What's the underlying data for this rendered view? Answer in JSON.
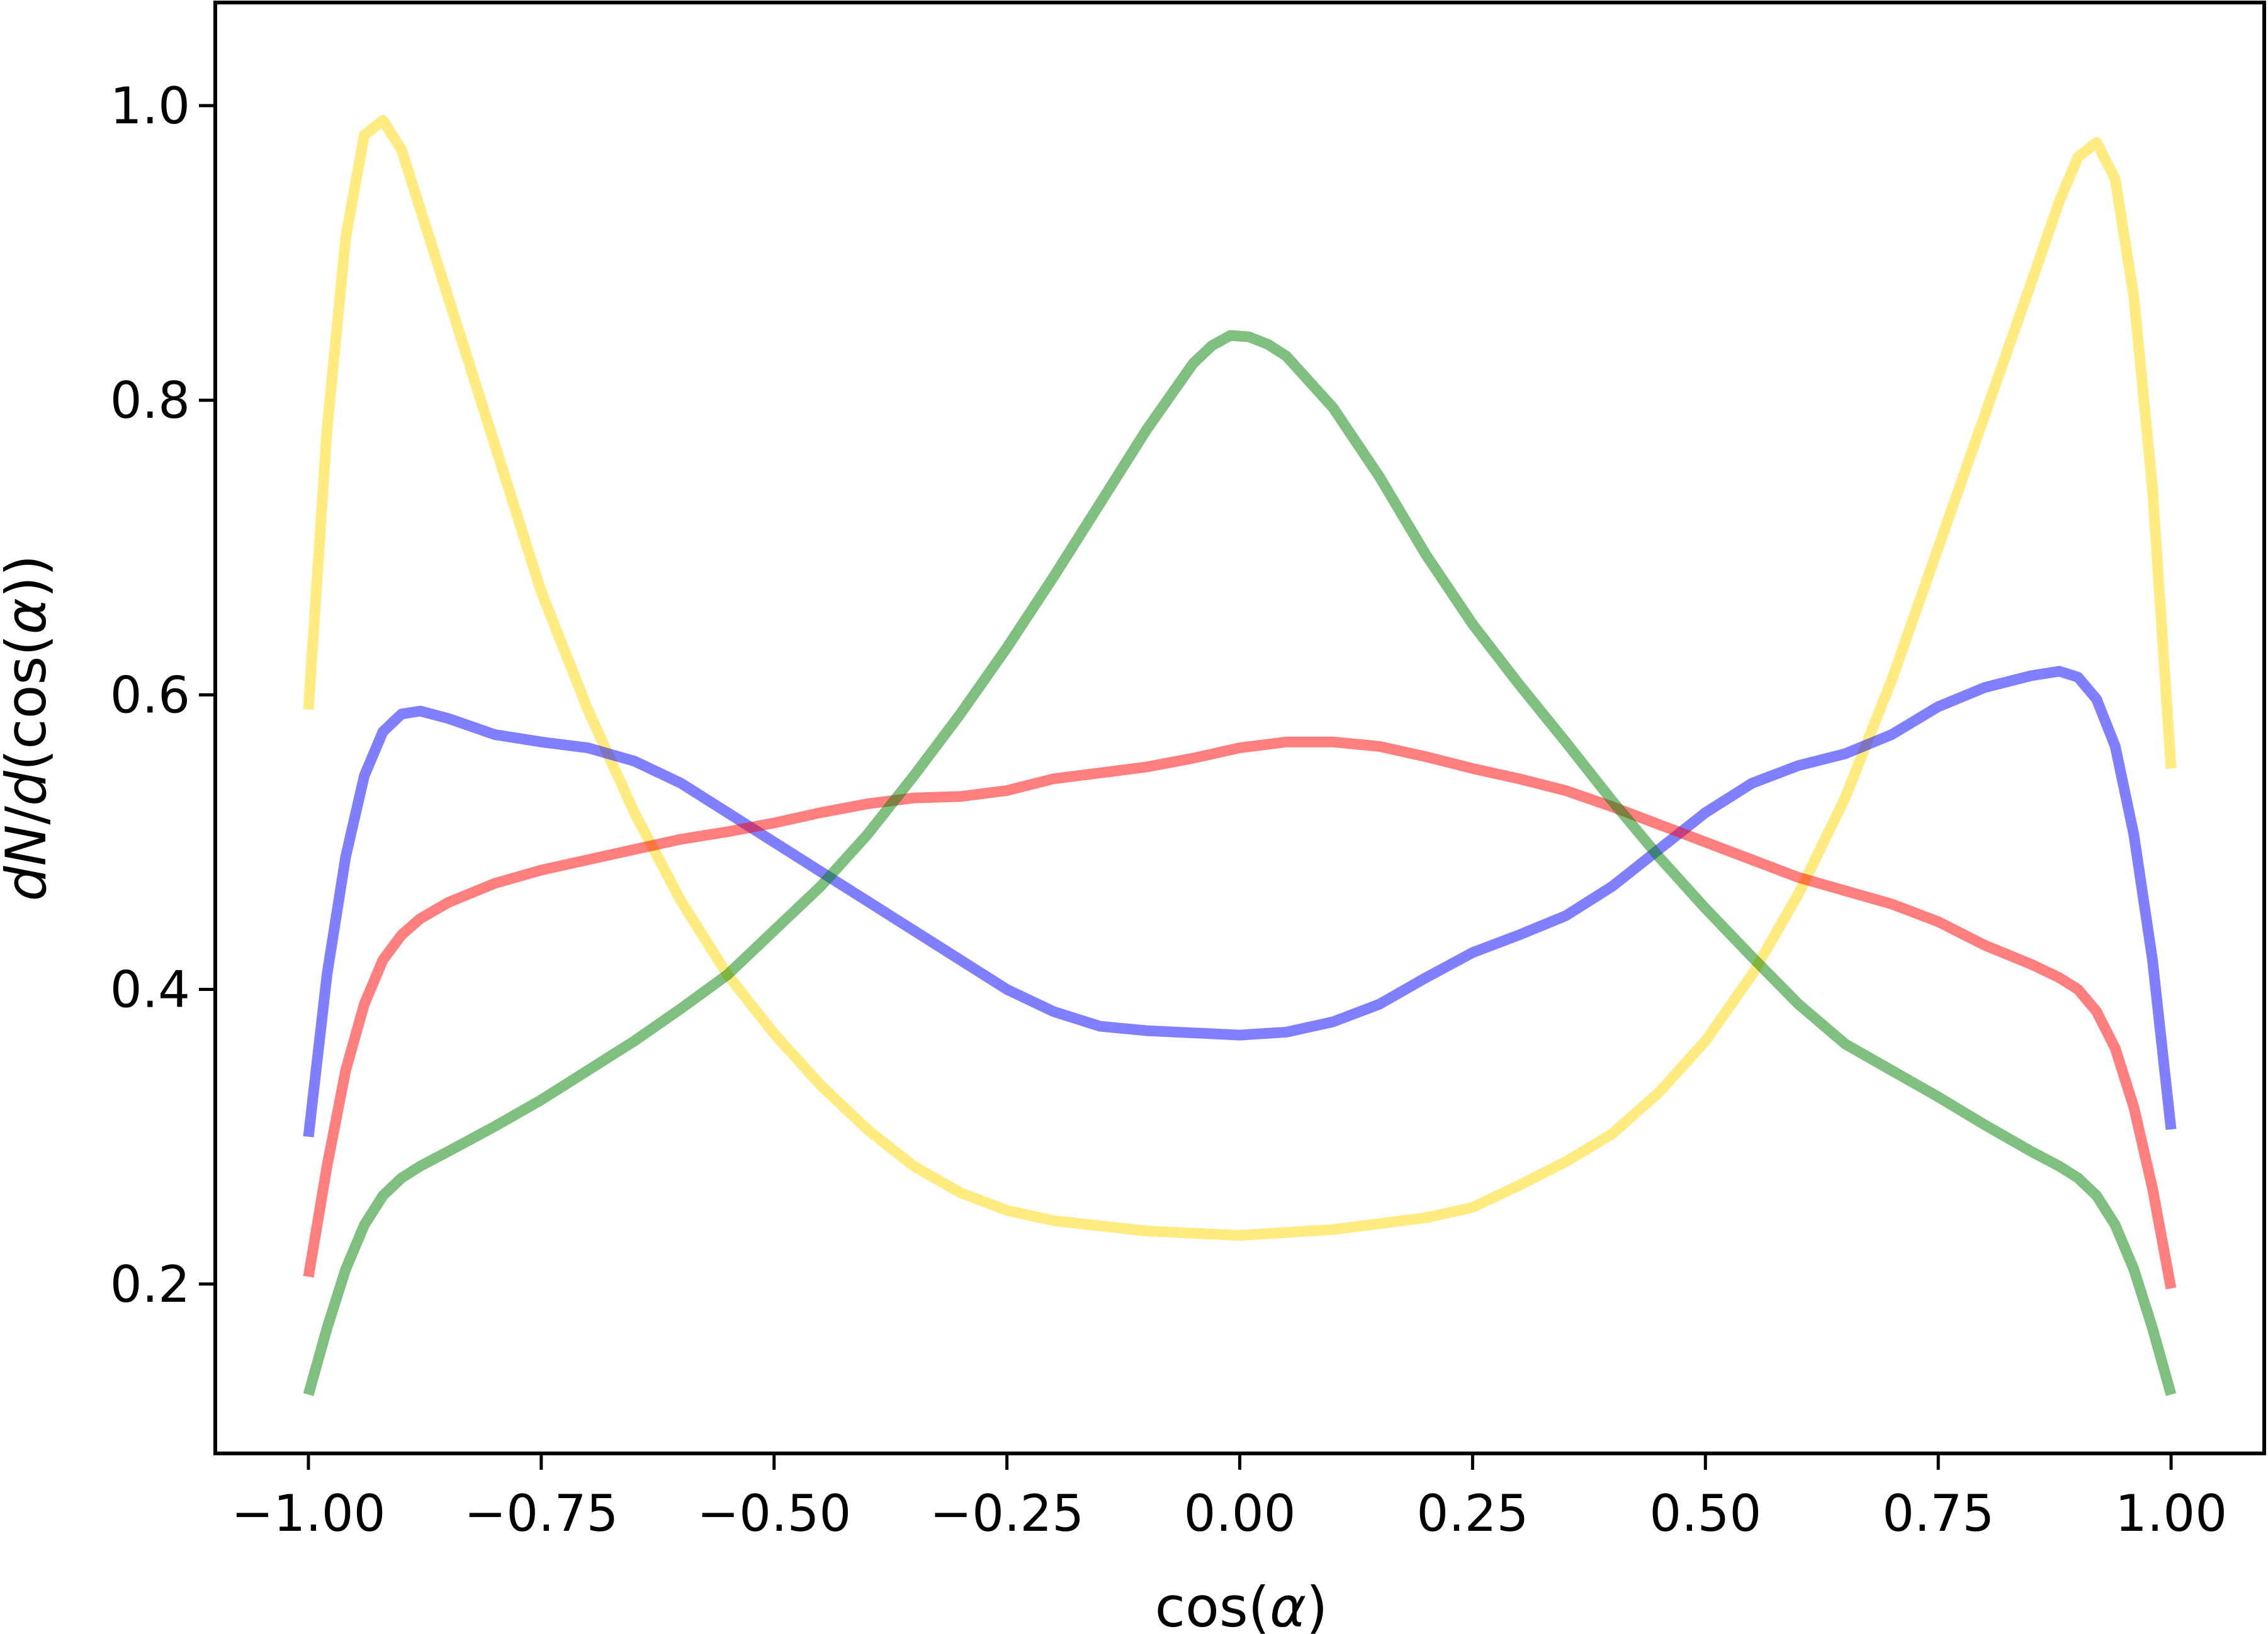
{
  "chart_data": {
    "type": "line",
    "xlabel": "cos(α)",
    "ylabel_parts": {
      "a": "dN",
      "b": "/",
      "c": "d",
      "d": "(cos(",
      "e": "α",
      "f": "))"
    },
    "xlabel_parts": {
      "a": "cos(",
      "b": "α",
      "c": ")"
    },
    "xlim": [
      -1.1,
      1.1
    ],
    "ylim": [
      0.085,
      1.07
    ],
    "xticks": [
      {
        "value": -1.0,
        "label": "−1.00"
      },
      {
        "value": -0.75,
        "label": "−0.75"
      },
      {
        "value": -0.5,
        "label": "−0.50"
      },
      {
        "value": -0.25,
        "label": "−0.25"
      },
      {
        "value": 0.0,
        "label": "0.00"
      },
      {
        "value": 0.25,
        "label": "0.25"
      },
      {
        "value": 0.5,
        "label": "0.50"
      },
      {
        "value": 0.75,
        "label": "0.75"
      },
      {
        "value": 1.0,
        "label": "1.00"
      }
    ],
    "yticks": [
      {
        "value": 0.2,
        "label": "0.2"
      },
      {
        "value": 0.4,
        "label": "0.4"
      },
      {
        "value": 0.6,
        "label": "0.6"
      },
      {
        "value": 0.8,
        "label": "0.8"
      },
      {
        "value": 1.0,
        "label": "1.0"
      }
    ],
    "grid": false,
    "legend": "none",
    "series": [
      {
        "color": "#ffd700",
        "points": [
          [
            -1.0,
            0.59
          ],
          [
            -0.98,
            0.78
          ],
          [
            -0.96,
            0.91
          ],
          [
            -0.94,
            0.98
          ],
          [
            -0.92,
            0.99
          ],
          [
            -0.9,
            0.97
          ],
          [
            -0.88,
            0.93
          ],
          [
            -0.85,
            0.87
          ],
          [
            -0.8,
            0.77
          ],
          [
            -0.75,
            0.67
          ],
          [
            -0.7,
            0.59
          ],
          [
            -0.65,
            0.52
          ],
          [
            -0.6,
            0.46
          ],
          [
            -0.55,
            0.41
          ],
          [
            -0.5,
            0.37
          ],
          [
            -0.45,
            0.335
          ],
          [
            -0.4,
            0.305
          ],
          [
            -0.35,
            0.28
          ],
          [
            -0.3,
            0.262
          ],
          [
            -0.25,
            0.25
          ],
          [
            -0.2,
            0.243
          ],
          [
            -0.1,
            0.236
          ],
          [
            0.0,
            0.233
          ],
          [
            0.1,
            0.237
          ],
          [
            0.2,
            0.245
          ],
          [
            0.25,
            0.252
          ],
          [
            0.3,
            0.267
          ],
          [
            0.35,
            0.283
          ],
          [
            0.4,
            0.302
          ],
          [
            0.45,
            0.33
          ],
          [
            0.5,
            0.365
          ],
          [
            0.55,
            0.41
          ],
          [
            0.6,
            0.465
          ],
          [
            0.65,
            0.53
          ],
          [
            0.7,
            0.61
          ],
          [
            0.75,
            0.7
          ],
          [
            0.8,
            0.79
          ],
          [
            0.85,
            0.88
          ],
          [
            0.88,
            0.935
          ],
          [
            0.9,
            0.965
          ],
          [
            0.92,
            0.975
          ],
          [
            0.94,
            0.95
          ],
          [
            0.96,
            0.87
          ],
          [
            0.98,
            0.74
          ],
          [
            1.0,
            0.55
          ]
        ]
      },
      {
        "color": "#0000ff",
        "points": [
          [
            -1.0,
            0.3
          ],
          [
            -0.98,
            0.41
          ],
          [
            -0.96,
            0.49
          ],
          [
            -0.94,
            0.545
          ],
          [
            -0.92,
            0.575
          ],
          [
            -0.9,
            0.587
          ],
          [
            -0.88,
            0.589
          ],
          [
            -0.85,
            0.584
          ],
          [
            -0.8,
            0.573
          ],
          [
            -0.75,
            0.568
          ],
          [
            -0.7,
            0.564
          ],
          [
            -0.65,
            0.555
          ],
          [
            -0.6,
            0.54
          ],
          [
            -0.55,
            0.52
          ],
          [
            -0.5,
            0.5
          ],
          [
            -0.45,
            0.48
          ],
          [
            -0.4,
            0.46
          ],
          [
            -0.35,
            0.44
          ],
          [
            -0.3,
            0.42
          ],
          [
            -0.25,
            0.4
          ],
          [
            -0.2,
            0.385
          ],
          [
            -0.15,
            0.375
          ],
          [
            -0.1,
            0.372
          ],
          [
            0.0,
            0.369
          ],
          [
            0.05,
            0.371
          ],
          [
            0.1,
            0.378
          ],
          [
            0.15,
            0.39
          ],
          [
            0.2,
            0.408
          ],
          [
            0.25,
            0.425
          ],
          [
            0.3,
            0.437
          ],
          [
            0.35,
            0.45
          ],
          [
            0.4,
            0.47
          ],
          [
            0.45,
            0.495
          ],
          [
            0.5,
            0.52
          ],
          [
            0.55,
            0.54
          ],
          [
            0.6,
            0.552
          ],
          [
            0.65,
            0.56
          ],
          [
            0.7,
            0.573
          ],
          [
            0.75,
            0.592
          ],
          [
            0.8,
            0.605
          ],
          [
            0.85,
            0.613
          ],
          [
            0.88,
            0.616
          ],
          [
            0.9,
            0.612
          ],
          [
            0.92,
            0.597
          ],
          [
            0.94,
            0.565
          ],
          [
            0.96,
            0.505
          ],
          [
            0.98,
            0.42
          ],
          [
            1.0,
            0.305
          ]
        ]
      },
      {
        "color": "#ff0000",
        "points": [
          [
            -1.0,
            0.205
          ],
          [
            -0.98,
            0.28
          ],
          [
            -0.96,
            0.345
          ],
          [
            -0.94,
            0.39
          ],
          [
            -0.92,
            0.42
          ],
          [
            -0.9,
            0.437
          ],
          [
            -0.88,
            0.448
          ],
          [
            -0.85,
            0.459
          ],
          [
            -0.8,
            0.472
          ],
          [
            -0.75,
            0.481
          ],
          [
            -0.7,
            0.488
          ],
          [
            -0.65,
            0.495
          ],
          [
            -0.6,
            0.502
          ],
          [
            -0.55,
            0.507
          ],
          [
            -0.5,
            0.513
          ],
          [
            -0.45,
            0.52
          ],
          [
            -0.4,
            0.526
          ],
          [
            -0.35,
            0.53
          ],
          [
            -0.3,
            0.531
          ],
          [
            -0.25,
            0.535
          ],
          [
            -0.2,
            0.543
          ],
          [
            -0.15,
            0.547
          ],
          [
            -0.1,
            0.551
          ],
          [
            -0.05,
            0.557
          ],
          [
            0.0,
            0.564
          ],
          [
            0.05,
            0.568
          ],
          [
            0.1,
            0.568
          ],
          [
            0.15,
            0.565
          ],
          [
            0.2,
            0.558
          ],
          [
            0.25,
            0.55
          ],
          [
            0.3,
            0.543
          ],
          [
            0.35,
            0.535
          ],
          [
            0.4,
            0.524
          ],
          [
            0.45,
            0.512
          ],
          [
            0.5,
            0.5
          ],
          [
            0.55,
            0.488
          ],
          [
            0.6,
            0.476
          ],
          [
            0.65,
            0.467
          ],
          [
            0.7,
            0.458
          ],
          [
            0.75,
            0.446
          ],
          [
            0.8,
            0.43
          ],
          [
            0.85,
            0.417
          ],
          [
            0.88,
            0.408
          ],
          [
            0.9,
            0.4
          ],
          [
            0.92,
            0.385
          ],
          [
            0.94,
            0.36
          ],
          [
            0.96,
            0.32
          ],
          [
            0.98,
            0.265
          ],
          [
            1.0,
            0.197
          ]
        ]
      },
      {
        "color": "#008000",
        "points": [
          [
            -1.0,
            0.125
          ],
          [
            -0.98,
            0.17
          ],
          [
            -0.96,
            0.21
          ],
          [
            -0.94,
            0.24
          ],
          [
            -0.92,
            0.26
          ],
          [
            -0.9,
            0.272
          ],
          [
            -0.88,
            0.28
          ],
          [
            -0.85,
            0.29
          ],
          [
            -0.8,
            0.307
          ],
          [
            -0.75,
            0.325
          ],
          [
            -0.7,
            0.345
          ],
          [
            -0.65,
            0.365
          ],
          [
            -0.6,
            0.387
          ],
          [
            -0.55,
            0.41
          ],
          [
            -0.5,
            0.44
          ],
          [
            -0.45,
            0.47
          ],
          [
            -0.4,
            0.505
          ],
          [
            -0.35,
            0.545
          ],
          [
            -0.3,
            0.587
          ],
          [
            -0.25,
            0.632
          ],
          [
            -0.2,
            0.68
          ],
          [
            -0.15,
            0.73
          ],
          [
            -0.1,
            0.78
          ],
          [
            -0.05,
            0.825
          ],
          [
            -0.03,
            0.837
          ],
          [
            -0.01,
            0.844
          ],
          [
            0.01,
            0.843
          ],
          [
            0.03,
            0.838
          ],
          [
            0.05,
            0.83
          ],
          [
            0.1,
            0.795
          ],
          [
            0.15,
            0.748
          ],
          [
            0.2,
            0.695
          ],
          [
            0.25,
            0.648
          ],
          [
            0.3,
            0.607
          ],
          [
            0.35,
            0.568
          ],
          [
            0.4,
            0.528
          ],
          [
            0.45,
            0.49
          ],
          [
            0.5,
            0.455
          ],
          [
            0.55,
            0.422
          ],
          [
            0.6,
            0.39
          ],
          [
            0.65,
            0.363
          ],
          [
            0.7,
            0.345
          ],
          [
            0.75,
            0.327
          ],
          [
            0.8,
            0.308
          ],
          [
            0.85,
            0.29
          ],
          [
            0.88,
            0.28
          ],
          [
            0.9,
            0.272
          ],
          [
            0.92,
            0.26
          ],
          [
            0.94,
            0.24
          ],
          [
            0.96,
            0.21
          ],
          [
            0.98,
            0.17
          ],
          [
            1.0,
            0.125
          ]
        ]
      }
    ]
  }
}
